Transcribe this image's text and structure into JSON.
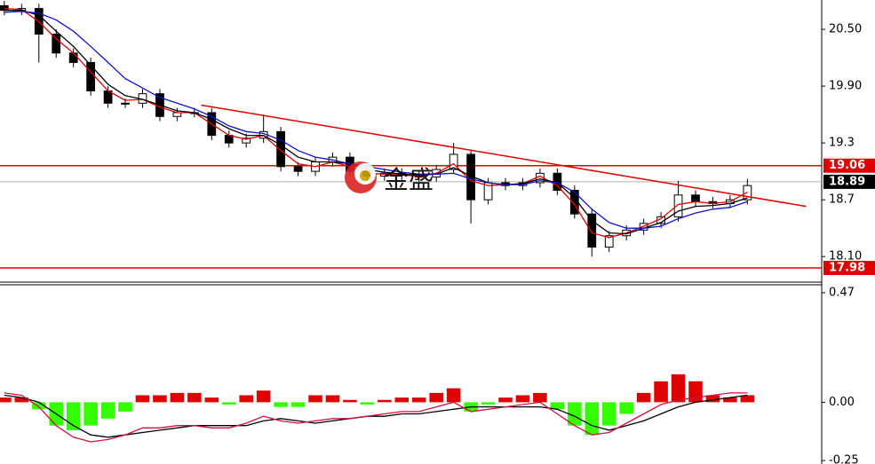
{
  "chart_data": [
    {
      "type": "candlestick",
      "watermark": "金盛",
      "x": [
        0,
        1,
        2,
        3,
        4,
        5,
        6,
        7,
        8,
        9,
        10,
        11,
        12,
        13,
        14,
        15,
        16,
        17,
        18,
        19,
        20,
        21,
        22,
        23,
        24,
        25,
        26,
        27,
        28,
        29,
        30,
        31,
        32,
        33,
        34,
        35,
        36,
        37,
        38,
        39,
        40,
        41,
        42,
        43
      ],
      "xlim": [
        -0.25,
        47.3
      ],
      "open": [
        20.75,
        20.7,
        20.72,
        20.45,
        20.25,
        20.15,
        19.85,
        19.72,
        19.72,
        19.82,
        19.58,
        19.62,
        19.62,
        19.38,
        19.3,
        19.35,
        19.42,
        19.05,
        19.0,
        19.1,
        19.15,
        19.0,
        18.95,
        18.98,
        18.96,
        18.94,
        19.02,
        19.18,
        18.7,
        18.88,
        18.85,
        18.88,
        18.98,
        18.8,
        18.55,
        18.2,
        18.32,
        18.38,
        18.45,
        18.52,
        18.75,
        18.68,
        18.66,
        18.7
      ],
      "high": [
        20.8,
        20.77,
        20.77,
        20.5,
        20.3,
        20.2,
        19.9,
        19.77,
        19.87,
        19.87,
        19.67,
        19.67,
        19.67,
        19.43,
        19.4,
        19.6,
        19.47,
        19.1,
        19.15,
        19.2,
        19.2,
        19.05,
        19.03,
        19.03,
        19.01,
        19.07,
        19.3,
        19.23,
        18.93,
        18.93,
        18.93,
        19.03,
        19.03,
        18.85,
        18.6,
        18.37,
        18.43,
        18.5,
        18.57,
        18.9,
        18.8,
        18.73,
        18.75,
        18.92
      ],
      "low": [
        20.65,
        20.65,
        20.15,
        20.2,
        20.1,
        19.8,
        19.67,
        19.67,
        19.67,
        19.53,
        19.53,
        19.57,
        19.33,
        19.25,
        19.25,
        19.3,
        19.0,
        18.95,
        18.95,
        19.05,
        18.95,
        18.9,
        18.9,
        18.91,
        18.89,
        18.89,
        18.97,
        18.45,
        18.65,
        18.8,
        18.8,
        18.83,
        18.75,
        18.5,
        18.1,
        18.15,
        18.27,
        18.33,
        18.4,
        18.47,
        18.63,
        18.61,
        18.61,
        18.65
      ],
      "close": [
        20.7,
        20.72,
        20.45,
        20.25,
        20.15,
        19.85,
        19.72,
        19.72,
        19.82,
        19.58,
        19.62,
        19.62,
        19.38,
        19.3,
        19.35,
        19.42,
        19.05,
        19.0,
        19.1,
        19.15,
        19.0,
        18.95,
        18.98,
        18.96,
        18.94,
        19.02,
        19.18,
        18.7,
        18.88,
        18.85,
        18.88,
        18.98,
        18.8,
        18.55,
        18.2,
        18.32,
        18.38,
        18.45,
        18.52,
        18.75,
        18.68,
        18.66,
        18.7,
        18.85
      ],
      "series": [
        {
          "color": "#e00000",
          "values": [
            20.72,
            20.71,
            20.58,
            20.4,
            20.25,
            20.05,
            19.85,
            19.75,
            19.76,
            19.68,
            19.62,
            19.62,
            19.5,
            19.38,
            19.34,
            19.38,
            19.22,
            19.08,
            19.05,
            19.1,
            19.05,
            18.98,
            18.97,
            18.96,
            18.95,
            18.98,
            19.08,
            18.9,
            18.85,
            18.86,
            18.87,
            18.95,
            18.85,
            18.65,
            18.35,
            18.3,
            18.35,
            18.42,
            18.5,
            18.65,
            18.68,
            18.66,
            18.68,
            18.78
          ]
        },
        {
          "color": "#000000",
          "values": [
            20.7,
            20.7,
            20.65,
            20.48,
            20.32,
            20.12,
            19.92,
            19.8,
            19.76,
            19.7,
            19.64,
            19.62,
            19.55,
            19.45,
            19.38,
            19.38,
            19.28,
            19.15,
            19.1,
            19.1,
            19.08,
            19.02,
            18.99,
            18.97,
            18.96,
            18.97,
            19.04,
            18.95,
            18.88,
            18.86,
            18.87,
            18.92,
            18.88,
            18.72,
            18.48,
            18.35,
            18.34,
            18.4,
            18.46,
            18.58,
            18.63,
            18.64,
            18.66,
            18.72
          ]
        },
        {
          "color": "#1010d0",
          "values": [
            20.68,
            20.69,
            20.67,
            20.6,
            20.48,
            20.32,
            20.15,
            19.98,
            19.88,
            19.78,
            19.72,
            19.66,
            19.58,
            19.48,
            19.42,
            19.4,
            19.33,
            19.22,
            19.15,
            19.12,
            19.08,
            19.05,
            19.02,
            18.99,
            18.97,
            18.97,
            18.98,
            18.92,
            18.88,
            18.86,
            18.86,
            18.9,
            18.88,
            18.78,
            18.6,
            18.46,
            18.4,
            18.4,
            18.42,
            18.5,
            18.56,
            18.6,
            18.62,
            18.68
          ]
        }
      ],
      "trend_line": {
        "color": "#e00000",
        "x": [
          11.4,
          46.4
        ],
        "values": [
          19.7,
          18.63
        ]
      },
      "levels": [
        {
          "value": 19.06,
          "color": "#e00000"
        },
        {
          "value": 18.89,
          "color": "#b0b0b0",
          "label_color": "#000000"
        },
        {
          "value": 17.98,
          "color": "#e00000"
        }
      ],
      "ylim": [
        17.83,
        20.81
      ],
      "yticks": [
        {
          "value": 18.1,
          "label": "18.10"
        },
        18.7,
        19.3,
        {
          "value": 19.9,
          "label": "19.90"
        },
        {
          "value": 20.5,
          "label": "20.50"
        }
      ]
    },
    {
      "type": "macd",
      "x": [
        0,
        1,
        2,
        3,
        4,
        5,
        6,
        7,
        8,
        9,
        10,
        11,
        12,
        13,
        14,
        15,
        16,
        17,
        18,
        19,
        20,
        21,
        22,
        23,
        24,
        25,
        26,
        27,
        28,
        29,
        30,
        31,
        32,
        33,
        34,
        35,
        36,
        37,
        38,
        39,
        40,
        41,
        42,
        43
      ],
      "xlim": [
        -0.25,
        47.3
      ],
      "histogram": {
        "up_color": "#e00000",
        "down_color": "#33ff00",
        "values": [
          0.02,
          0.02,
          -0.03,
          -0.1,
          -0.12,
          -0.1,
          -0.07,
          -0.04,
          0.03,
          0.03,
          0.04,
          0.04,
          0.02,
          -0.01,
          0.03,
          0.05,
          -0.02,
          -0.02,
          0.03,
          0.03,
          0.01,
          -0.01,
          0.01,
          0.02,
          0.02,
          0.04,
          0.06,
          -0.04,
          -0.01,
          0.02,
          0.03,
          0.04,
          -0.03,
          -0.1,
          -0.14,
          -0.1,
          -0.05,
          0.04,
          0.09,
          0.12,
          0.09,
          0.03,
          0.02,
          0.03
        ]
      },
      "series": [
        {
          "color": "#000000",
          "values": [
            0.03,
            0.02,
            0.0,
            -0.05,
            -0.1,
            -0.14,
            -0.15,
            -0.14,
            -0.13,
            -0.12,
            -0.11,
            -0.1,
            -0.1,
            -0.1,
            -0.1,
            -0.08,
            -0.07,
            -0.08,
            -0.09,
            -0.08,
            -0.07,
            -0.06,
            -0.06,
            -0.05,
            -0.05,
            -0.04,
            -0.03,
            -0.02,
            -0.02,
            -0.02,
            -0.02,
            -0.02,
            -0.03,
            -0.06,
            -0.1,
            -0.12,
            -0.1,
            -0.08,
            -0.05,
            -0.02,
            0.0,
            0.01,
            0.02,
            0.03
          ]
        },
        {
          "color": "#d01040",
          "values": [
            0.04,
            0.03,
            -0.02,
            -0.1,
            -0.15,
            -0.17,
            -0.16,
            -0.14,
            -0.11,
            -0.11,
            -0.1,
            -0.1,
            -0.11,
            -0.11,
            -0.09,
            -0.06,
            -0.08,
            -0.09,
            -0.08,
            -0.07,
            -0.07,
            -0.06,
            -0.05,
            -0.04,
            -0.04,
            -0.02,
            0.0,
            -0.04,
            -0.03,
            -0.02,
            -0.01,
            0.0,
            -0.05,
            -0.1,
            -0.14,
            -0.13,
            -0.09,
            -0.05,
            -0.01,
            0.01,
            0.02,
            0.03,
            0.04,
            0.04
          ]
        }
      ],
      "ylim": [
        -0.265,
        0.504
      ],
      "yticks": [
        -0.25,
        {
          "value": 0,
          "label": "0.00"
        },
        0.47
      ]
    }
  ]
}
